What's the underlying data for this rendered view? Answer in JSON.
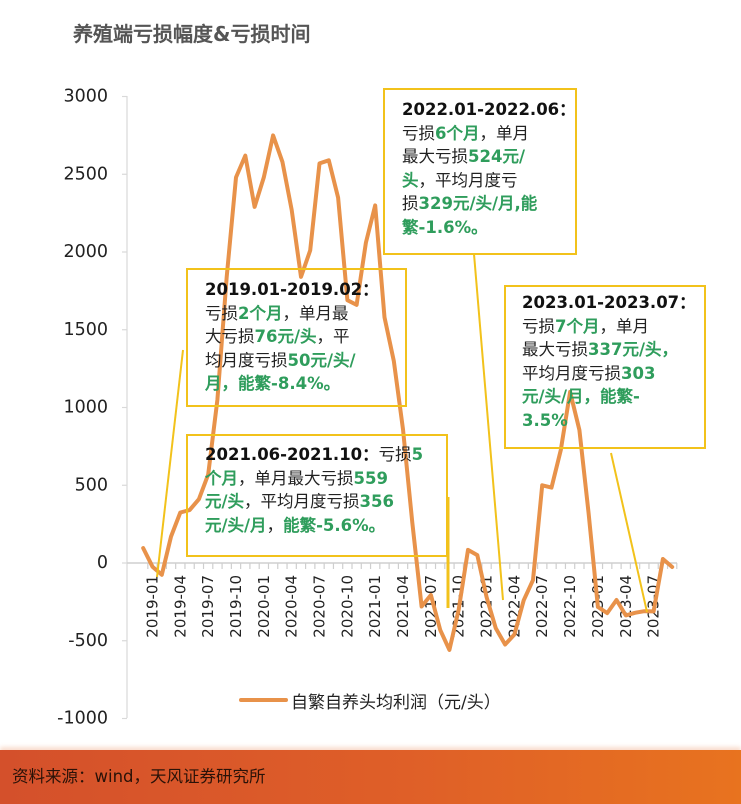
{
  "title": "养殖端亏损幅度&亏损时间",
  "legend": {
    "label": "自繁自养头均利润（元/头）",
    "color": "#e8924a"
  },
  "source": "资料来源：wind，天风证券研究所",
  "colors": {
    "line": "#e8924a",
    "annotation_border": "#f2c21b",
    "highlight_text": "#2f9d5c",
    "footer": "#d4502b"
  },
  "annotations": [
    {
      "period": "2019.01-2019.02",
      "lines": [
        [
          {
            "t": "2019.01-2019.02：",
            "s": "b"
          }
        ],
        [
          {
            "t": "亏损",
            "s": "n"
          },
          {
            "t": "2个月",
            "s": "g"
          },
          {
            "t": "，单月最",
            "s": "n"
          }
        ],
        [
          {
            "t": "大亏损",
            "s": "n"
          },
          {
            "t": "76元/头",
            "s": "g"
          },
          {
            "t": "，平",
            "s": "n"
          }
        ],
        [
          {
            "t": "均月度亏损",
            "s": "n"
          },
          {
            "t": "50元/头/",
            "s": "g"
          }
        ],
        [
          {
            "t": "月，能繁-8.4%。",
            "s": "g"
          }
        ]
      ]
    },
    {
      "period": "2021.06-2021.10",
      "lines": [
        [
          {
            "t": "2021.06-2021.10：",
            "s": "b"
          },
          {
            "t": "亏损",
            "s": "n"
          },
          {
            "t": "5",
            "s": "g"
          }
        ],
        [
          {
            "t": "个月",
            "s": "g"
          },
          {
            "t": "，单月最大亏损",
            "s": "n"
          },
          {
            "t": "559",
            "s": "g"
          }
        ],
        [
          {
            "t": "元/头",
            "s": "g"
          },
          {
            "t": "，平均月度亏损",
            "s": "n"
          },
          {
            "t": "356",
            "s": "g"
          }
        ],
        [
          {
            "t": "元/头/月",
            "s": "g"
          },
          {
            "t": "，",
            "s": "n"
          },
          {
            "t": "能繁-5.6%。",
            "s": "g"
          }
        ]
      ]
    },
    {
      "period": "2022.01-2022.06",
      "lines": [
        [
          {
            "t": "2022.01-2022.06：",
            "s": "b"
          }
        ],
        [
          {
            "t": "亏损",
            "s": "n"
          },
          {
            "t": "6个月",
            "s": "g"
          },
          {
            "t": "，单月",
            "s": "n"
          }
        ],
        [
          {
            "t": "最大亏损",
            "s": "n"
          },
          {
            "t": "524元/",
            "s": "g"
          }
        ],
        [
          {
            "t": "头",
            "s": "g"
          },
          {
            "t": "，平均月度亏",
            "s": "n"
          }
        ],
        [
          {
            "t": "损",
            "s": "n"
          },
          {
            "t": "329元/头/月,能",
            "s": "g"
          }
        ],
        [
          {
            "t": "繁-1.6%。",
            "s": "g"
          }
        ]
      ]
    },
    {
      "period": "2023.01-2023.07",
      "lines": [
        [
          {
            "t": "2023.01-2023.07：",
            "s": "b"
          }
        ],
        [
          {
            "t": "亏损",
            "s": "n"
          },
          {
            "t": "7个月",
            "s": "g"
          },
          {
            "t": "，单月",
            "s": "n"
          }
        ],
        [
          {
            "t": "最大亏损",
            "s": "n"
          },
          {
            "t": "337元/头，",
            "s": "g"
          }
        ],
        [
          {
            "t": "平均月度亏损",
            "s": "n"
          },
          {
            "t": "303",
            "s": "g"
          }
        ],
        [
          {
            "t": "元/头/月，能繁-",
            "s": "g"
          }
        ],
        [
          {
            "t": "3.5%",
            "s": "g"
          }
        ]
      ]
    }
  ],
  "chart_data": {
    "type": "line",
    "title": "养殖端亏损幅度&亏损时间",
    "xlabel": "",
    "ylabel": "",
    "ylim": [
      -1000,
      3000
    ],
    "y_ticks": [
      3000,
      2500,
      2000,
      1500,
      1000,
      500,
      0,
      -500,
      -1000
    ],
    "grid": false,
    "legend_position": "bottom",
    "x_tick_labels": [
      "2019-01",
      "2019-04",
      "2019-07",
      "2019-10",
      "2020-01",
      "2020-04",
      "2020-07",
      "2020-10",
      "2021-01",
      "2021-04",
      "2021-07",
      "2021-10",
      "2022-01",
      "2022-04",
      "2022-07",
      "2022-10",
      "2023-01",
      "2023-04",
      "2023-07"
    ],
    "categories": [
      "2018-12",
      "2019-01",
      "2019-02",
      "2019-03",
      "2019-04",
      "2019-05",
      "2019-06",
      "2019-07",
      "2019-08",
      "2019-09",
      "2019-10",
      "2019-11",
      "2019-12",
      "2020-01",
      "2020-02",
      "2020-03",
      "2020-04",
      "2020-05",
      "2020-06",
      "2020-07",
      "2020-08",
      "2020-09",
      "2020-10",
      "2020-11",
      "2020-12",
      "2021-01",
      "2021-02",
      "2021-03",
      "2021-04",
      "2021-05",
      "2021-06",
      "2021-07",
      "2021-08",
      "2021-09",
      "2021-10",
      "2021-11",
      "2021-12",
      "2022-01",
      "2022-02",
      "2022-03",
      "2022-04",
      "2022-05",
      "2022-06",
      "2022-07",
      "2022-08",
      "2022-09",
      "2022-10",
      "2022-11",
      "2022-12",
      "2023-01",
      "2023-02",
      "2023-03",
      "2023-04",
      "2023-05",
      "2023-06",
      "2023-07",
      "2023-08",
      "2023-09"
    ],
    "series": [
      {
        "name": "自繁自养头均利润（元/头）",
        "color": "#e8924a",
        "values": [
          96,
          -24,
          -76,
          170,
          325,
          340,
          410,
          570,
          1050,
          1840,
          2480,
          2620,
          2290,
          2480,
          2750,
          2580,
          2270,
          1840,
          2010,
          2570,
          2590,
          2350,
          1690,
          1660,
          2060,
          2300,
          1580,
          1300,
          860,
          260,
          -280,
          -206,
          -430,
          -559,
          -300,
          84,
          51,
          -220,
          -420,
          -524,
          -460,
          -240,
          -110,
          500,
          485,
          727,
          1100,
          855,
          320,
          -283,
          -322,
          -238,
          -337,
          -320,
          -310,
          -311,
          26,
          -26
        ]
      }
    ],
    "annotations": [
      "2019.01-2019.02：亏损2个月，单月最大亏损76元/头，平均月度亏损50元/头/月，能繁-8.4%。",
      "2021.06-2021.10：亏损5个月，单月最大亏损559元/头，平均月度亏损356元/头/月，能繁-5.6%。",
      "2022.01-2022.06：亏损6个月，单月最大亏损524元/头，平均月度亏损329元/头/月,能繁-1.6%。",
      "2023.01-2023.07：亏损7个月，单月最大亏损337元/头，平均月度亏损303元/头/月，能繁-3.5%"
    ]
  }
}
